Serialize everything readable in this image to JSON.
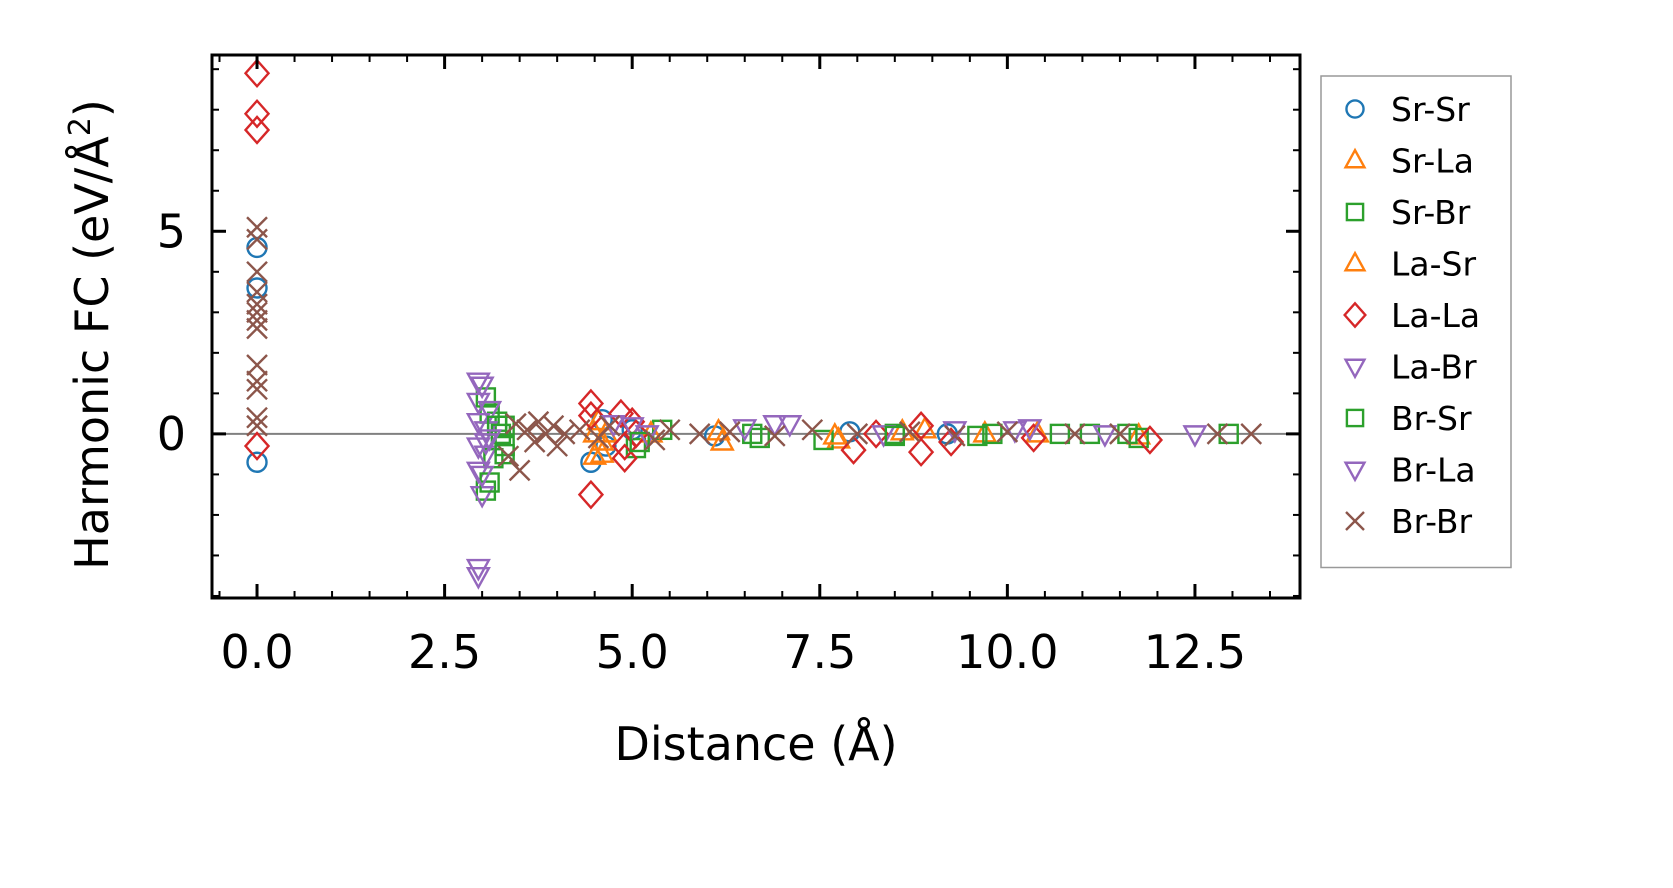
{
  "chart_data": {
    "type": "scatter",
    "title": "",
    "xlabel": "Distance (Å)",
    "ylabel_text": "Harmonic FC (eV/Å",
    "ylabel_sup": "2",
    "ylabel_close": ")",
    "xlim": [
      -0.6,
      13.9
    ],
    "ylim": [
      -4.05,
      9.35
    ],
    "x_ticks": [
      0.0,
      2.5,
      5.0,
      7.5,
      10.0,
      12.5
    ],
    "x_tick_labels": [
      "0.0",
      "2.5",
      "5.0",
      "7.5",
      "10.0",
      "12.5"
    ],
    "y_ticks": [
      0,
      5
    ],
    "y_tick_labels": [
      "0",
      "5"
    ],
    "x_minor_step": 0.5,
    "y_minor_step": 1,
    "zero_line": true,
    "legend_position": "outside-right",
    "series": [
      {
        "name": "Sr-Sr",
        "marker": "circle",
        "color": "#1f77b4",
        "points": [
          [
            0.0,
            4.6
          ],
          [
            0.0,
            3.6
          ],
          [
            0.0,
            -0.7
          ],
          [
            4.45,
            -0.7
          ],
          [
            4.6,
            0.35
          ],
          [
            4.65,
            -0.3
          ],
          [
            5.0,
            0.1
          ],
          [
            6.1,
            -0.05
          ],
          [
            7.9,
            0.05
          ],
          [
            9.2,
            0.0
          ]
        ]
      },
      {
        "name": "Sr-La",
        "marker": "triangle-up",
        "color": "#ff7f0e",
        "points": [
          [
            4.5,
            -0.55
          ],
          [
            4.55,
            0.3
          ],
          [
            4.6,
            -0.2
          ],
          [
            4.65,
            0.0
          ],
          [
            6.2,
            -0.2
          ],
          [
            7.75,
            -0.15
          ],
          [
            8.6,
            0.05
          ],
          [
            9.7,
            0.0
          ],
          [
            11.75,
            -0.05
          ]
        ]
      },
      {
        "name": "Sr-Br",
        "marker": "square",
        "color": "#2ca02c",
        "points": [
          [
            3.05,
            -1.4
          ],
          [
            3.05,
            0.9
          ],
          [
            3.1,
            0.5
          ],
          [
            3.15,
            -0.6
          ],
          [
            3.2,
            0.3
          ],
          [
            3.3,
            -0.3
          ],
          [
            3.3,
            0.2
          ],
          [
            5.05,
            -0.35
          ],
          [
            5.4,
            0.1
          ],
          [
            6.7,
            -0.1
          ],
          [
            7.55,
            -0.15
          ],
          [
            8.5,
            0.0
          ],
          [
            9.6,
            -0.05
          ],
          [
            10.7,
            0.0
          ],
          [
            11.6,
            0.0
          ],
          [
            11.75,
            -0.1
          ],
          [
            12.95,
            0.0
          ]
        ]
      },
      {
        "name": "La-Sr",
        "marker": "triangle-up",
        "color": "#ff7f0e",
        "points": [
          [
            4.5,
            0.0
          ],
          [
            4.6,
            -0.5
          ],
          [
            5.25,
            0.0
          ],
          [
            6.15,
            0.05
          ],
          [
            7.7,
            -0.05
          ],
          [
            8.9,
            0.1
          ],
          [
            10.4,
            0.0
          ]
        ]
      },
      {
        "name": "La-La",
        "marker": "diamond",
        "color": "#d62728",
        "points": [
          [
            0.0,
            8.9
          ],
          [
            0.0,
            7.9
          ],
          [
            0.0,
            7.5
          ],
          [
            0.0,
            -0.3
          ],
          [
            4.45,
            0.75
          ],
          [
            4.45,
            0.45
          ],
          [
            4.45,
            -1.5
          ],
          [
            4.85,
            0.5
          ],
          [
            4.9,
            -0.3
          ],
          [
            4.9,
            -0.6
          ],
          [
            5.0,
            0.3
          ],
          [
            5.05,
            0.0
          ],
          [
            7.95,
            -0.4
          ],
          [
            8.25,
            0.0
          ],
          [
            8.85,
            -0.45
          ],
          [
            8.85,
            0.2
          ],
          [
            9.25,
            -0.2
          ],
          [
            10.35,
            -0.1
          ],
          [
            11.9,
            -0.15
          ]
        ]
      },
      {
        "name": "La-Br",
        "marker": "triangle-down",
        "color": "#9467bd",
        "points": [
          [
            2.95,
            1.3
          ],
          [
            2.95,
            0.8
          ],
          [
            2.95,
            0.3
          ],
          [
            2.95,
            -0.3
          ],
          [
            2.95,
            -0.9
          ],
          [
            3.0,
            -1.5
          ],
          [
            3.05,
            -0.5
          ],
          [
            3.05,
            0.1
          ],
          [
            3.1,
            0.6
          ],
          [
            5.0,
            0.2
          ],
          [
            5.2,
            0.0
          ],
          [
            6.9,
            0.25
          ],
          [
            8.35,
            0.0
          ],
          [
            10.1,
            0.1
          ],
          [
            12.5,
            0.0
          ]
        ]
      },
      {
        "name": "Br-Sr",
        "marker": "square",
        "color": "#2ca02c",
        "points": [
          [
            3.1,
            -1.2
          ],
          [
            3.2,
            0.2
          ],
          [
            3.25,
            0.0
          ],
          [
            3.3,
            -0.5
          ],
          [
            5.1,
            -0.2
          ],
          [
            6.6,
            0.0
          ],
          [
            8.5,
            -0.05
          ],
          [
            9.8,
            0.0
          ],
          [
            11.1,
            0.0
          ]
        ]
      },
      {
        "name": "Br-La",
        "marker": "triangle-down",
        "color": "#9467bd",
        "points": [
          [
            2.95,
            -3.3
          ],
          [
            2.95,
            -3.5
          ],
          [
            3.0,
            -1.0
          ],
          [
            3.0,
            1.2
          ],
          [
            3.05,
            -0.2
          ],
          [
            3.1,
            -0.1
          ],
          [
            4.75,
            0.25
          ],
          [
            6.5,
            0.15
          ],
          [
            7.1,
            0.25
          ],
          [
            9.3,
            0.1
          ],
          [
            10.3,
            0.15
          ],
          [
            11.3,
            0.0
          ]
        ]
      },
      {
        "name": "Br-Br",
        "marker": "cross",
        "color": "#8c564b",
        "points": [
          [
            0.0,
            5.1
          ],
          [
            0.0,
            4.8
          ],
          [
            0.0,
            4.0
          ],
          [
            0.0,
            3.5
          ],
          [
            0.0,
            3.2
          ],
          [
            0.0,
            3.0
          ],
          [
            0.0,
            2.8
          ],
          [
            0.0,
            2.6
          ],
          [
            0.0,
            1.7
          ],
          [
            0.0,
            1.3
          ],
          [
            0.0,
            1.1
          ],
          [
            0.0,
            0.4
          ],
          [
            0.0,
            0.2
          ],
          [
            3.35,
            -0.55
          ],
          [
            3.45,
            0.25
          ],
          [
            3.5,
            -0.9
          ],
          [
            3.6,
            0.1
          ],
          [
            3.7,
            -0.2
          ],
          [
            3.75,
            0.3
          ],
          [
            3.85,
            0.0
          ],
          [
            3.95,
            0.2
          ],
          [
            4.0,
            -0.3
          ],
          [
            4.1,
            0.0
          ],
          [
            4.3,
            0.1
          ],
          [
            4.55,
            -0.1
          ],
          [
            4.7,
            0.2
          ],
          [
            5.3,
            -0.15
          ],
          [
            5.5,
            0.1
          ],
          [
            5.9,
            0.0
          ],
          [
            6.3,
            0.05
          ],
          [
            6.9,
            -0.05
          ],
          [
            7.4,
            0.1
          ],
          [
            8.0,
            0.0
          ],
          [
            8.7,
            0.05
          ],
          [
            9.3,
            -0.05
          ],
          [
            10.0,
            0.05
          ],
          [
            10.9,
            0.0
          ],
          [
            11.5,
            0.0
          ],
          [
            12.8,
            0.0
          ],
          [
            13.25,
            0.0
          ]
        ]
      }
    ]
  }
}
